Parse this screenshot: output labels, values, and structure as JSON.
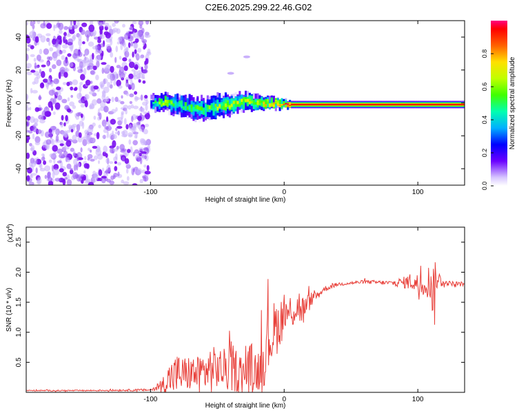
{
  "title": "C2E6.2025.299.22.46.G02",
  "colors": {
    "snr_line": "#e8403a",
    "axis": "#000000",
    "noise_dot": "#8844ee",
    "band_core": "#e00000"
  },
  "chart_data": [
    {
      "type": "heatmap",
      "title": "C2E6.2025.299.22.46.G02",
      "xlabel": "Height of straight line (km)",
      "ylabel": "Frequency (Hz)",
      "xlim": [
        -193,
        135
      ],
      "ylim": [
        -50,
        50
      ],
      "x_ticks": [
        -100,
        0,
        100
      ],
      "x_tick_labels": [
        "-100",
        "0",
        "100"
      ],
      "y_ticks": [
        -40,
        -20,
        0,
        20,
        40
      ],
      "y_tick_labels": [
        "-40",
        "-20",
        "0",
        "20",
        "40"
      ],
      "colorbar": {
        "label": "Normalized spectral amplitude",
        "range": [
          0,
          1
        ],
        "ticks": [
          0.0,
          0.2,
          0.4,
          0.6,
          0.8
        ],
        "tick_labels": [
          "0.0",
          "0.2",
          "0.4",
          "0.6",
          "0.8"
        ]
      },
      "noise_region_x": [
        -193,
        -101
      ],
      "signal_band": [
        {
          "x": -100,
          "freq": 0,
          "width": 5,
          "amp": 0.3
        },
        {
          "x": -90,
          "freq": 0,
          "width": 6,
          "amp": 0.6
        },
        {
          "x": -80,
          "freq": -1,
          "width": 7,
          "amp": 0.45
        },
        {
          "x": -70,
          "freq": -3,
          "width": 8,
          "amp": 0.45
        },
        {
          "x": -60,
          "freq": -4,
          "width": 8,
          "amp": 0.45
        },
        {
          "x": -50,
          "freq": -2,
          "width": 8,
          "amp": 0.5
        },
        {
          "x": -40,
          "freq": -1,
          "width": 7,
          "amp": 0.55
        },
        {
          "x": -30,
          "freq": 1,
          "width": 6,
          "amp": 0.55
        },
        {
          "x": -20,
          "freq": 0,
          "width": 5,
          "amp": 0.6
        },
        {
          "x": -10,
          "freq": 0,
          "width": 4,
          "amp": 0.65
        },
        {
          "x": 0,
          "freq": -1,
          "width": 3,
          "amp": 0.75
        },
        {
          "x": 5,
          "freq": -1,
          "width": 2.5,
          "amp": 0.95
        },
        {
          "x": 40,
          "freq": -1,
          "width": 2.5,
          "amp": 0.95
        },
        {
          "x": 80,
          "freq": -1,
          "width": 2.5,
          "amp": 0.95
        },
        {
          "x": 100,
          "freq": -1,
          "width": 2.5,
          "amp": 0.95
        },
        {
          "x": 135,
          "freq": -1,
          "width": 2.5,
          "amp": 0.95
        }
      ],
      "streak": [
        {
          "x": -40,
          "freq": 18
        },
        {
          "x": -28,
          "freq": 28
        }
      ]
    },
    {
      "type": "line",
      "xlabel": "Height of straight line (km)",
      "ylabel": "SNR (10 * v/v)",
      "y_scale_label": "(x10",
      "y_scale_exponent": "4",
      "xlim": [
        -193,
        135
      ],
      "ylim": [
        0,
        2.75
      ],
      "x_ticks": [
        -100,
        0,
        100
      ],
      "x_tick_labels": [
        "-100",
        "0",
        "100"
      ],
      "y_ticks": [
        0.5,
        1.0,
        1.5,
        2.0,
        2.5
      ],
      "y_tick_labels": [
        "0.5",
        "1.0",
        "1.5",
        "2.0",
        "2.5"
      ],
      "series": [
        {
          "name": "SNR",
          "x": [
            -193,
            -150,
            -100,
            -95,
            -90,
            -85,
            -80,
            -75,
            -70,
            -65,
            -60,
            -55,
            -50,
            -45,
            -40,
            -35,
            -30,
            -25,
            -20,
            -15,
            -10,
            -5,
            0,
            5,
            10,
            15,
            20,
            25,
            30,
            40,
            60,
            80,
            90,
            95,
            100,
            105,
            110,
            112,
            114,
            120,
            135
          ],
          "values": [
            0.03,
            0.03,
            0.04,
            0.08,
            0.15,
            0.25,
            0.3,
            0.3,
            0.32,
            0.3,
            0.35,
            0.38,
            0.4,
            0.38,
            0.42,
            0.36,
            0.32,
            0.4,
            0.35,
            0.6,
            0.95,
            1.1,
            1.3,
            1.35,
            1.45,
            1.35,
            1.55,
            1.62,
            1.72,
            1.8,
            1.84,
            1.82,
            1.83,
            1.85,
            1.8,
            1.82,
            1.85,
            1.55,
            1.9,
            1.82,
            1.8
          ],
          "noise_amp": [
            0.01,
            0.01,
            0.02,
            0.06,
            0.15,
            0.3,
            0.35,
            0.3,
            0.3,
            0.3,
            0.35,
            0.4,
            0.35,
            0.35,
            0.45,
            0.35,
            0.3,
            0.45,
            0.35,
            0.5,
            0.55,
            0.45,
            0.35,
            0.3,
            0.35,
            0.25,
            0.12,
            0.08,
            0.05,
            0.03,
            0.03,
            0.04,
            0.1,
            0.15,
            0.18,
            0.2,
            0.35,
            0.7,
            0.2,
            0.04,
            0.04
          ]
        }
      ]
    }
  ]
}
